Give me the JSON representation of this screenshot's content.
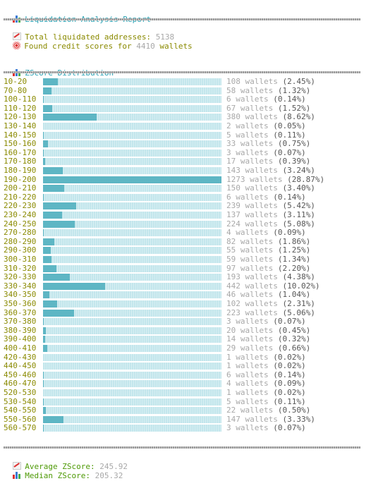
{
  "header": {
    "title": "Liquidation Analysis Report"
  },
  "summary": {
    "total_label": "Total liquidated addresses: ",
    "total_value": "5138",
    "credit_prefix": "Found credit scores for ",
    "credit_value": "4410",
    "credit_suffix": " wallets"
  },
  "distribution": {
    "title": "ZScore Distribution",
    "wallets_word": "wallets",
    "rows": [
      {
        "range": "10-20",
        "count": 108,
        "pct": "(2.45%)"
      },
      {
        "range": "70-80",
        "count": 58,
        "pct": "(1.32%)"
      },
      {
        "range": "100-110",
        "count": 6,
        "pct": "(0.14%)"
      },
      {
        "range": "110-120",
        "count": 67,
        "pct": "(1.52%)"
      },
      {
        "range": "120-130",
        "count": 380,
        "pct": "(8.62%)"
      },
      {
        "range": "130-140",
        "count": 2,
        "pct": "(0.05%)"
      },
      {
        "range": "140-150",
        "count": 5,
        "pct": "(0.11%)"
      },
      {
        "range": "150-160",
        "count": 33,
        "pct": "(0.75%)"
      },
      {
        "range": "160-170",
        "count": 3,
        "pct": "(0.07%)"
      },
      {
        "range": "170-180",
        "count": 17,
        "pct": "(0.39%)"
      },
      {
        "range": "180-190",
        "count": 143,
        "pct": "(3.24%)"
      },
      {
        "range": "190-200",
        "count": 1273,
        "pct": "(28.87%)"
      },
      {
        "range": "200-210",
        "count": 150,
        "pct": "(3.40%)"
      },
      {
        "range": "210-220",
        "count": 6,
        "pct": "(0.14%)"
      },
      {
        "range": "220-230",
        "count": 239,
        "pct": "(5.42%)"
      },
      {
        "range": "230-240",
        "count": 137,
        "pct": "(3.11%)"
      },
      {
        "range": "240-250",
        "count": 224,
        "pct": "(5.08%)"
      },
      {
        "range": "270-280",
        "count": 4,
        "pct": "(0.09%)"
      },
      {
        "range": "280-290",
        "count": 82,
        "pct": "(1.86%)"
      },
      {
        "range": "290-300",
        "count": 55,
        "pct": "(1.25%)"
      },
      {
        "range": "300-310",
        "count": 59,
        "pct": "(1.34%)"
      },
      {
        "range": "310-320",
        "count": 97,
        "pct": "(2.20%)"
      },
      {
        "range": "320-330",
        "count": 193,
        "pct": "(4.38%)"
      },
      {
        "range": "330-340",
        "count": 442,
        "pct": "(10.02%)"
      },
      {
        "range": "340-350",
        "count": 46,
        "pct": "(1.04%)"
      },
      {
        "range": "350-360",
        "count": 102,
        "pct": "(2.31%)"
      },
      {
        "range": "360-370",
        "count": 223,
        "pct": "(5.06%)"
      },
      {
        "range": "370-380",
        "count": 3,
        "pct": "(0.07%)"
      },
      {
        "range": "380-390",
        "count": 20,
        "pct": "(0.45%)"
      },
      {
        "range": "390-400",
        "count": 14,
        "pct": "(0.32%)"
      },
      {
        "range": "400-410",
        "count": 29,
        "pct": "(0.66%)"
      },
      {
        "range": "420-430",
        "count": 1,
        "pct": "(0.02%)"
      },
      {
        "range": "440-450",
        "count": 1,
        "pct": "(0.02%)"
      },
      {
        "range": "450-460",
        "count": 6,
        "pct": "(0.14%)"
      },
      {
        "range": "460-470",
        "count": 4,
        "pct": "(0.09%)"
      },
      {
        "range": "520-530",
        "count": 1,
        "pct": "(0.02%)"
      },
      {
        "range": "530-540",
        "count": 5,
        "pct": "(0.11%)"
      },
      {
        "range": "540-550",
        "count": 22,
        "pct": "(0.50%)"
      },
      {
        "range": "550-560",
        "count": 147,
        "pct": "(3.33%)"
      },
      {
        "range": "560-570",
        "count": 3,
        "pct": "(0.07%)"
      }
    ]
  },
  "stats": {
    "average_label": "Average ZScore: ",
    "average_value": "245.92",
    "median_label": "Median ZScore: ",
    "median_value": "205.32"
  },
  "colors": {
    "title": "#2aa1b3",
    "label": "#8a8a00",
    "bar_fill": "#5eb6c4",
    "bar_track": "#c3e6ec"
  }
}
